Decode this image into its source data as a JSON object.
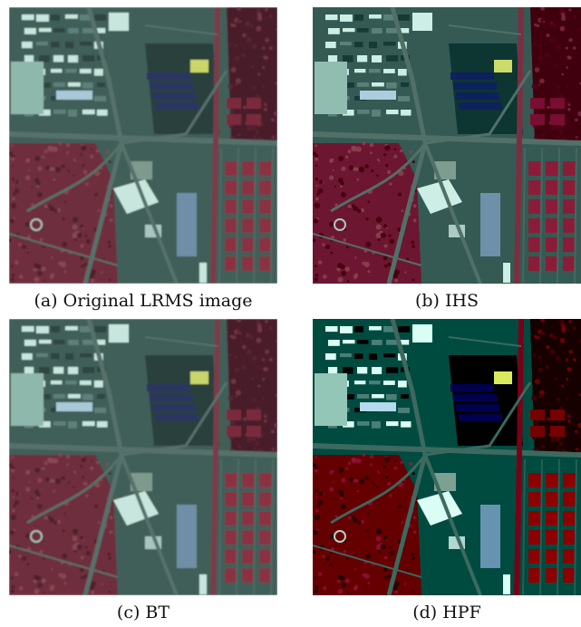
{
  "figure": {
    "panels": [
      {
        "caption": "(a) Original LRMS image",
        "style": "blur"
      },
      {
        "caption": "(b) IHS",
        "style": "sharp"
      },
      {
        "caption": "(c) BT",
        "style": "blur"
      },
      {
        "caption": "(d) HPF",
        "style": "contrast"
      }
    ]
  },
  "colors": {
    "vegetation": "#6e2f3c",
    "vegetation_dark": "#4a1f29",
    "urban": "#3f5f58",
    "urban_dark": "#2b403c",
    "road": "#56716b",
    "roof_blue": "#2c3560",
    "roof_white": "#c8e6dd",
    "roof_yellow": "#c8d66a",
    "field_red": "#8a3243"
  }
}
